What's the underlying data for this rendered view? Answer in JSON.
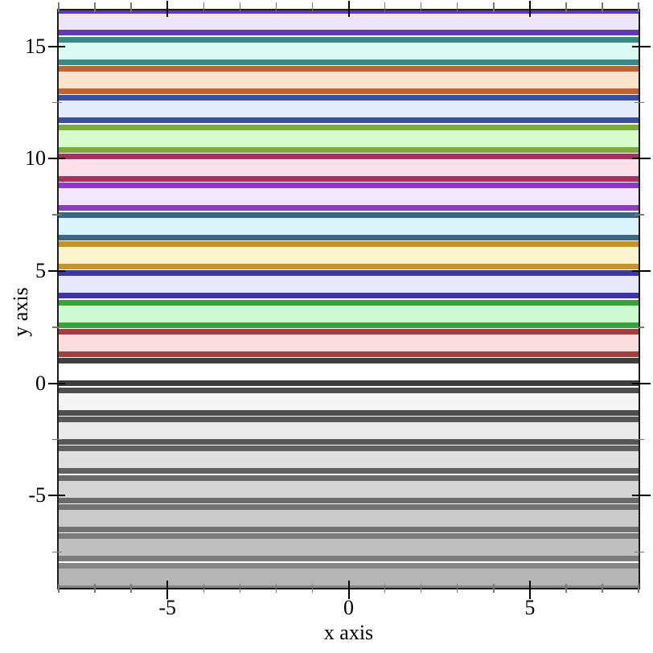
{
  "figure": {
    "background": "#ffffff",
    "frame_color": "#1c1c1c",
    "major_tick_color": "#000000",
    "minor_tick_color": "#777777"
  },
  "chart_data": {
    "type": "area",
    "title": "",
    "xlabel": "x axis",
    "ylabel": "y axis",
    "xlim": [
      -8,
      8
    ],
    "ylim": [
      -9.1,
      16.6
    ],
    "grid": false,
    "legend": "none",
    "description": "Horizontal function-interval bands: for each index i from -7 to 12, a band spans y = 1.3*i to 1.3*i + 1 across the full x range. Positive indices cycle through a color palette, index 0 has black edges with white fill, negative indices are grays that darken as i decreases.",
    "x_major_ticks": [
      -5,
      0,
      5
    ],
    "x_tick_labels": [
      "-5",
      "0",
      "5"
    ],
    "x_minor_ticks": [
      -8,
      -7,
      -6,
      -4,
      -3,
      -2,
      -1,
      1,
      2,
      3,
      4,
      6,
      7,
      8
    ],
    "y_major_ticks": [
      -5,
      0,
      5,
      10,
      15
    ],
    "y_tick_labels": [
      "-5",
      "0",
      "5",
      "10",
      "15"
    ],
    "y_minor_ticks": [
      -7.5,
      -2.5,
      2.5,
      7.5,
      12.5
    ],
    "bands": [
      {
        "i": -7,
        "y_lo": -9.1,
        "y_hi": -8.1,
        "line": "#868686",
        "fill": "#b5b5b5"
      },
      {
        "i": -6,
        "y_lo": -7.8,
        "y_hi": -6.8,
        "line": "#7c7c7c",
        "fill": "#c0c0c0"
      },
      {
        "i": -5,
        "y_lo": -6.5,
        "y_hi": -5.5,
        "line": "#727272",
        "fill": "#cacaca"
      },
      {
        "i": -4,
        "y_lo": -5.2,
        "y_hi": -4.2,
        "line": "#696969",
        "fill": "#d4d4d4"
      },
      {
        "i": -3,
        "y_lo": -3.9,
        "y_hi": -2.9,
        "line": "#606060",
        "fill": "#dfdfdf"
      },
      {
        "i": -2,
        "y_lo": -2.6,
        "y_hi": -1.6,
        "line": "#575757",
        "fill": "#e9e9e9"
      },
      {
        "i": -1,
        "y_lo": -1.3,
        "y_hi": -0.3,
        "line": "#4e4e4e",
        "fill": "#f4f4f4"
      },
      {
        "i": 0,
        "y_lo": 0.0,
        "y_hi": 1.0,
        "line": "#3e3e3e",
        "fill": "#ffffff"
      },
      {
        "i": 1,
        "y_lo": 1.3,
        "y_hi": 2.3,
        "line": "#a63c3c",
        "fill": "#fcdcdc"
      },
      {
        "i": 2,
        "y_lo": 2.6,
        "y_hi": 3.6,
        "line": "#3aa23a",
        "fill": "#cdfbd1"
      },
      {
        "i": 3,
        "y_lo": 3.9,
        "y_hi": 4.9,
        "line": "#3c37a0",
        "fill": "#e5e7fb"
      },
      {
        "i": 4,
        "y_lo": 5.2,
        "y_hi": 6.2,
        "line": "#c9902e",
        "fill": "#fdf3ce"
      },
      {
        "i": 5,
        "y_lo": 6.5,
        "y_hi": 7.5,
        "line": "#3d6682",
        "fill": "#d9f4fb"
      },
      {
        "i": 6,
        "y_lo": 7.8,
        "y_hi": 8.8,
        "line": "#8b39cc",
        "fill": "#f4e6fc"
      },
      {
        "i": 7,
        "y_lo": 9.1,
        "y_hi": 10.1,
        "line": "#ab2d62",
        "fill": "#fcdfe9"
      },
      {
        "i": 8,
        "y_lo": 10.4,
        "y_hi": 11.4,
        "line": "#79ab35",
        "fill": "#d8fbcb"
      },
      {
        "i": 9,
        "y_lo": 11.7,
        "y_hi": 12.7,
        "line": "#3c4f9b",
        "fill": "#e3ecfa"
      },
      {
        "i": 10,
        "y_lo": 13.0,
        "y_hi": 14.0,
        "line": "#bf6430",
        "fill": "#fce3cd"
      },
      {
        "i": 11,
        "y_lo": 14.3,
        "y_hi": 15.3,
        "line": "#3a8989",
        "fill": "#d8fbf3"
      },
      {
        "i": 12,
        "y_lo": 15.6,
        "y_hi": 16.6,
        "line": "#6336c0",
        "fill": "#ede5fa"
      }
    ]
  }
}
